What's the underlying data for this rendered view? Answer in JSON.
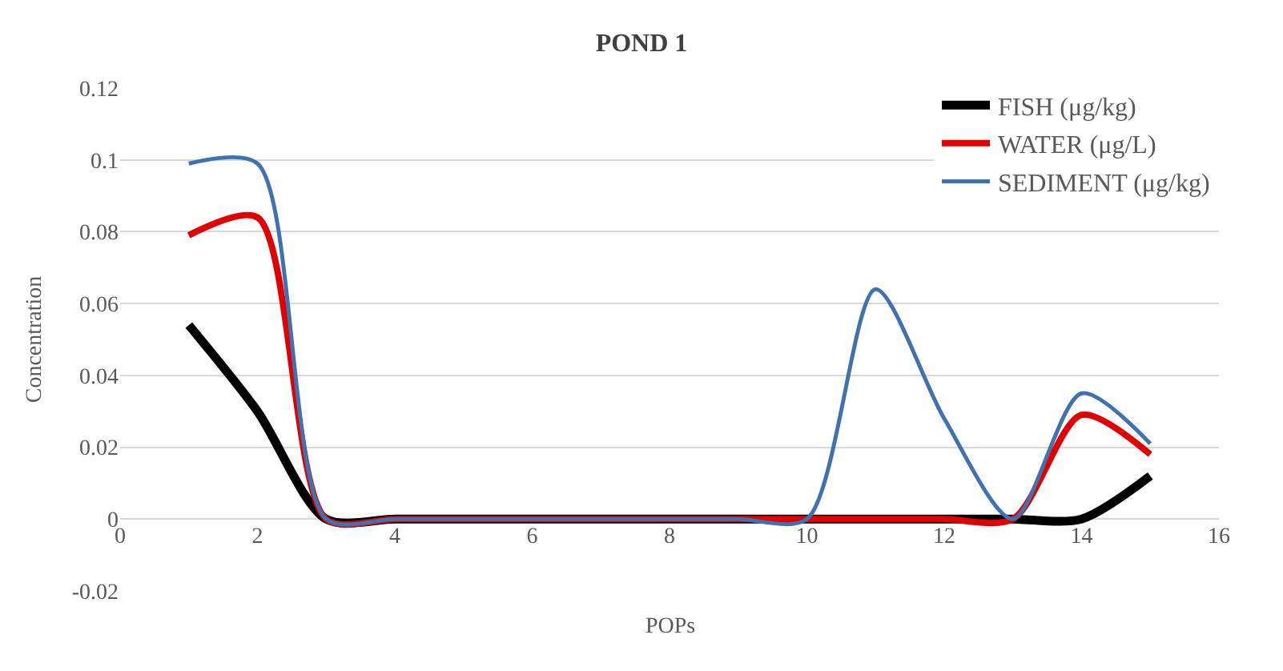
{
  "chart_data": {
    "type": "line",
    "title": "POND 1",
    "xlabel": "POPs",
    "ylabel": "Concentration",
    "x": [
      1,
      2,
      3,
      4,
      5,
      6,
      7,
      8,
      9,
      10,
      11,
      12,
      13,
      14,
      15
    ],
    "series": [
      {
        "name": "FISH (μg/kg)",
        "color": "#000000",
        "values": [
          0.054,
          0.03,
          0,
          0,
          0,
          0,
          0,
          0,
          0,
          0,
          0,
          0,
          0,
          0,
          0.012
        ]
      },
      {
        "name": "WATER (μg/L)",
        "color": "#e00000",
        "values": [
          0.079,
          0.084,
          0,
          0,
          0,
          0,
          0,
          0,
          0,
          0,
          0,
          0,
          0,
          0.029,
          0.018
        ]
      },
      {
        "name": "SEDIMENT (μg/kg)",
        "color": "#3f72af",
        "values": [
          0.099,
          0.099,
          0,
          0,
          0,
          0,
          0,
          0,
          0,
          0,
          0.064,
          0.028,
          0,
          0.035,
          0.021
        ]
      }
    ],
    "xlim": [
      0,
      16
    ],
    "xticks": [
      0,
      2,
      4,
      6,
      8,
      10,
      12,
      14,
      16
    ],
    "ylim": [
      -0.02,
      0.12
    ],
    "yticks": [
      -0.02,
      0,
      0.02,
      0.04,
      0.06,
      0.08,
      0.1,
      0.12
    ],
    "grid": "y",
    "legend": "top right",
    "marker": "none",
    "line_style": "solid"
  }
}
